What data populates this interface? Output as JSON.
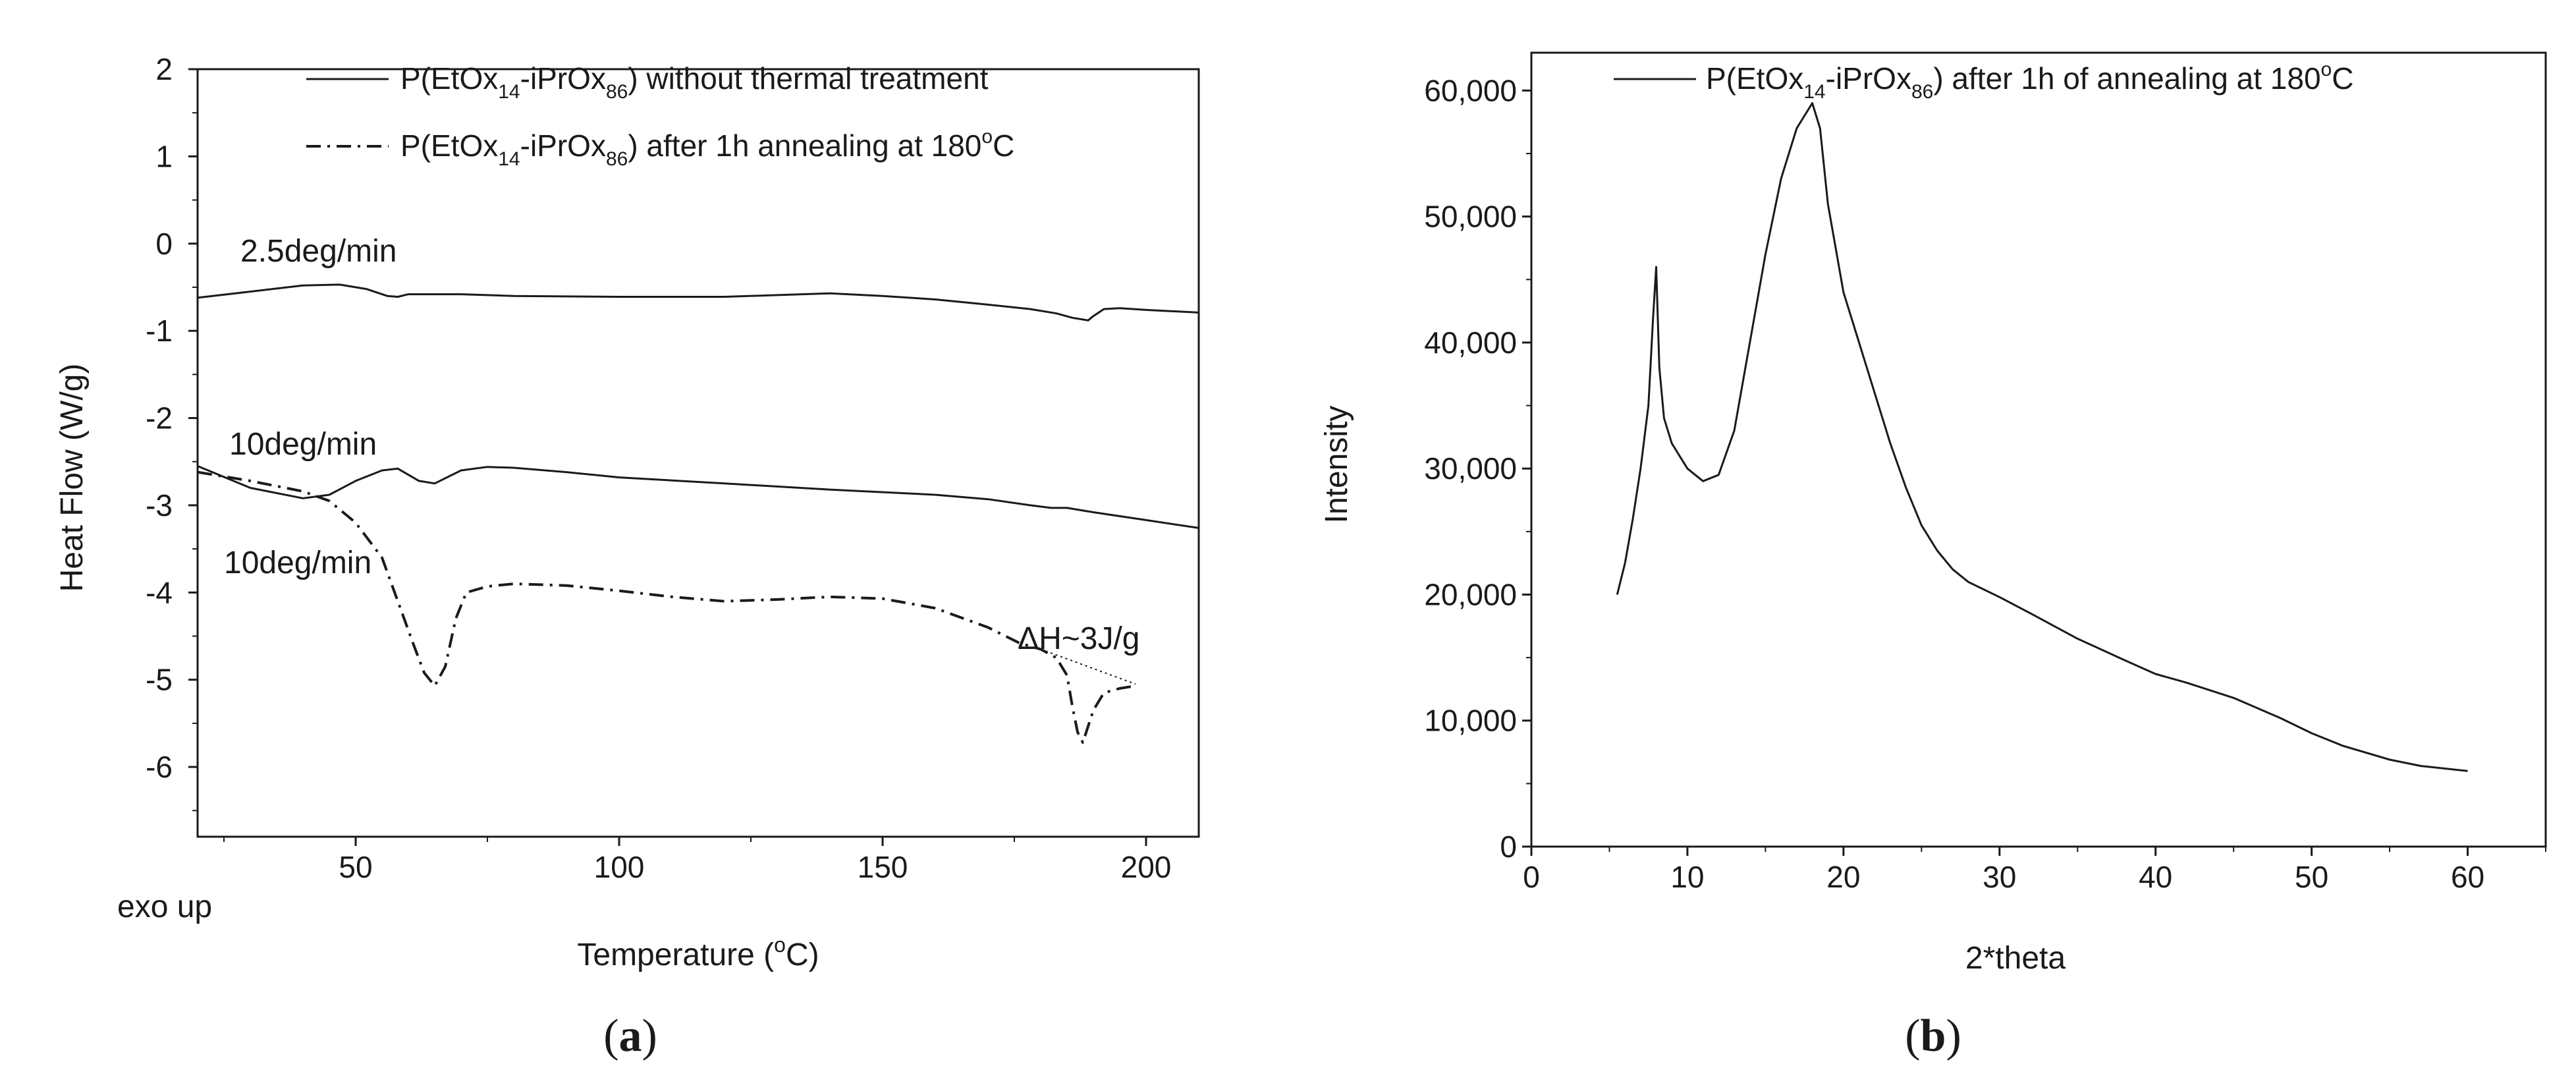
{
  "chart_data": [
    {
      "type": "line",
      "panel_label": "(a)",
      "panel_label_parts": {
        "open": "(",
        "letter": "a",
        "close": ")"
      },
      "xlabel": "Temperature (",
      "xlabel_sup": "o",
      "xlabel_end": "C)",
      "ylabel": "Heat Flow (W/g)",
      "xlim": [
        20,
        210
      ],
      "ylim": [
        -6.8,
        2
      ],
      "xticks": [
        50,
        100,
        150,
        200
      ],
      "yticks": [
        2,
        1,
        0,
        -1,
        -2,
        -3,
        -4,
        -5,
        -6
      ],
      "legend": [
        {
          "prefix": "P(EtOx",
          "sub1": "14",
          "mid": "-iPrOx",
          "sub2": "86",
          "suffix": ") without thermal treatment",
          "style": "solid"
        },
        {
          "prefix": "P(EtOx",
          "sub1": "14",
          "mid": "-iPrOx",
          "sub2": "86",
          "suffix": ") after 1h annealing at 180",
          "sup": "o",
          "end": "C",
          "style": "dash-dot"
        }
      ],
      "annotations": [
        "2.5deg/min",
        "10deg/min",
        "10deg/min",
        "ΔH~3J/g",
        "exo up"
      ],
      "series": [
        {
          "name": "2.5deg/min without thermal treatment",
          "style": "solid",
          "x": [
            20,
            30,
            40,
            47,
            52,
            56,
            58,
            60,
            70,
            80,
            100,
            120,
            140,
            150,
            160,
            170,
            178,
            183,
            186,
            189,
            190,
            192,
            195,
            200,
            210
          ],
          "y": [
            -0.62,
            -0.55,
            -0.48,
            -0.47,
            -0.52,
            -0.6,
            -0.61,
            -0.58,
            -0.58,
            -0.6,
            -0.61,
            -0.61,
            -0.57,
            -0.6,
            -0.64,
            -0.7,
            -0.75,
            -0.8,
            -0.85,
            -0.88,
            -0.83,
            -0.75,
            -0.74,
            -0.76,
            -0.79
          ]
        },
        {
          "name": "10deg/min without thermal treatment",
          "style": "solid",
          "x": [
            20,
            30,
            40,
            45,
            50,
            55,
            58,
            62,
            65,
            70,
            75,
            80,
            90,
            100,
            120,
            140,
            160,
            170,
            178,
            182,
            185,
            190,
            200,
            210
          ],
          "y": [
            -2.55,
            -2.8,
            -2.92,
            -2.88,
            -2.72,
            -2.6,
            -2.58,
            -2.72,
            -2.75,
            -2.6,
            -2.56,
            -2.57,
            -2.62,
            -2.68,
            -2.75,
            -2.82,
            -2.88,
            -2.93,
            -3.0,
            -3.03,
            -3.03,
            -3.08,
            -3.17,
            -3.26
          ]
        },
        {
          "name": "10deg/min after 1h annealing at 180°C",
          "style": "dash-dot",
          "x": [
            20,
            30,
            40,
            45,
            50,
            55,
            58,
            61,
            63,
            65,
            67,
            69,
            71,
            75,
            80,
            90,
            100,
            110,
            120,
            130,
            140,
            150,
            160,
            170,
            176,
            180,
            183,
            185,
            186,
            187,
            188,
            190,
            192,
            195,
            198
          ],
          "y": [
            -2.62,
            -2.72,
            -2.84,
            -2.95,
            -3.2,
            -3.6,
            -4.1,
            -4.6,
            -4.92,
            -5.07,
            -4.85,
            -4.3,
            -4.0,
            -3.93,
            -3.9,
            -3.92,
            -3.98,
            -4.05,
            -4.1,
            -4.08,
            -4.05,
            -4.07,
            -4.18,
            -4.4,
            -4.58,
            -4.65,
            -4.75,
            -4.95,
            -5.3,
            -5.6,
            -5.72,
            -5.35,
            -5.15,
            -5.1,
            -5.07
          ]
        },
        {
          "name": "baseline",
          "style": "dotted",
          "x": [
            180,
            198
          ],
          "y": [
            -4.65,
            -5.05
          ]
        }
      ]
    },
    {
      "type": "line",
      "panel_label": "(b)",
      "panel_label_parts": {
        "open": "(",
        "letter": "b",
        "close": ")"
      },
      "xlabel": "2*theta",
      "ylabel": "Intensity",
      "xlim": [
        0,
        65
      ],
      "ylim": [
        0,
        63000
      ],
      "xticks": [
        0,
        10,
        20,
        30,
        40,
        50,
        60
      ],
      "yticks": [
        0,
        10000,
        20000,
        30000,
        40000,
        50000,
        60000
      ],
      "ytick_labels": [
        "0",
        "10,000",
        "20,000",
        "30,000",
        "40,000",
        "50,000",
        "60,000"
      ],
      "legend": [
        {
          "prefix": "P(EtOx",
          "sub1": "14",
          "mid": "-iPrOx",
          "sub2": "86",
          "suffix": ") after 1h of annealing at 180",
          "sup": "o",
          "end": "C",
          "style": "solid"
        }
      ],
      "series": [
        {
          "name": "P(EtOx14-iPrOx86) after 1h of annealing at 180°C",
          "style": "solid",
          "x": [
            5.5,
            6,
            6.5,
            7,
            7.5,
            7.8,
            8.0,
            8.2,
            8.5,
            9,
            10,
            11,
            12,
            13,
            14,
            15,
            16,
            17,
            18,
            18.5,
            19,
            20,
            21,
            22,
            23,
            24,
            25,
            26,
            27,
            28,
            30,
            32,
            35,
            38,
            40,
            42,
            45,
            48,
            50,
            52,
            55,
            57,
            60
          ],
          "y": [
            20000,
            22500,
            26000,
            30000,
            35000,
            42000,
            46000,
            38000,
            34000,
            32000,
            30000,
            29000,
            29500,
            33000,
            40000,
            47000,
            53000,
            57000,
            59000,
            57000,
            51000,
            44000,
            40000,
            36000,
            32000,
            28500,
            25500,
            23500,
            22000,
            21000,
            19800,
            18500,
            16500,
            14800,
            13700,
            13000,
            11800,
            10200,
            9000,
            8000,
            6900,
            6400,
            6000
          ]
        }
      ]
    }
  ]
}
